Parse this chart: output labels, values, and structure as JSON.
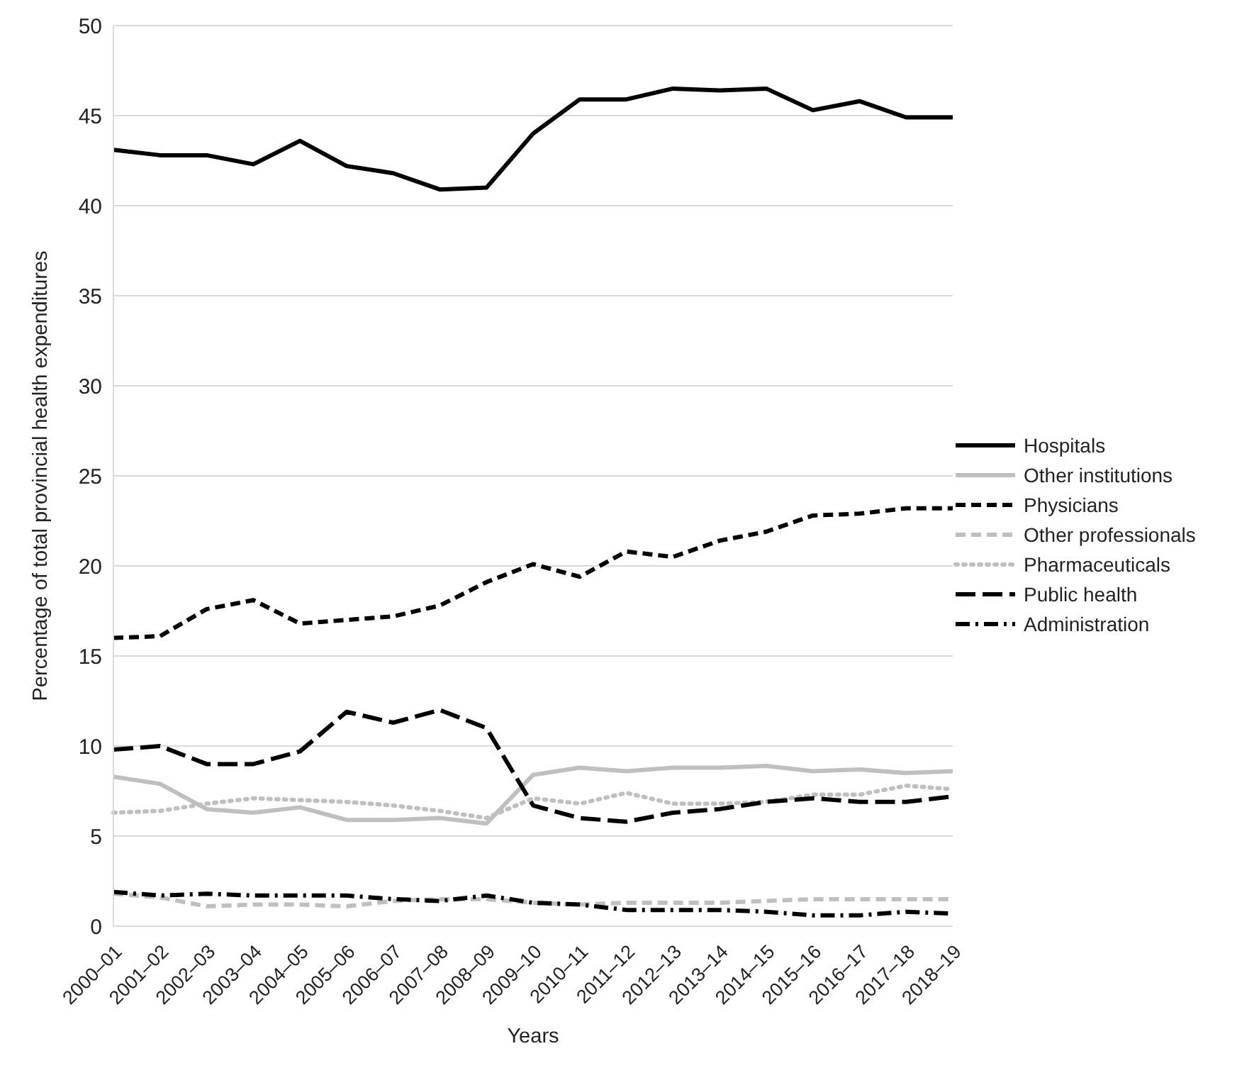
{
  "chart_data": {
    "type": "line",
    "xlabel": "Years",
    "ylabel": "Percentage of total provincial health expenditures",
    "categories": [
      "2000–01",
      "2001–02",
      "2002–03",
      "2003–04",
      "2004–05",
      "2005–06",
      "2006–07",
      "2007–08",
      "2008–09",
      "2009–10",
      "2010–11",
      "2011–12",
      "2012–13",
      "2013–14",
      "2014–15",
      "2015–16",
      "2016–17",
      "2017–18",
      "2018–19"
    ],
    "series": [
      {
        "name": "Hospitals",
        "color": "#000000",
        "line_style": "solid",
        "values": [
          43.1,
          42.8,
          42.8,
          42.3,
          43.6,
          42.2,
          41.8,
          40.9,
          41.0,
          44.0,
          45.9,
          45.9,
          46.5,
          46.4,
          46.5,
          45.3,
          45.8,
          44.9,
          44.9
        ]
      },
      {
        "name": "Other institutions",
        "color": "#bfbfbf",
        "line_style": "solid",
        "values": [
          8.3,
          7.9,
          6.5,
          6.3,
          6.6,
          5.9,
          5.9,
          6.0,
          5.7,
          8.4,
          8.8,
          8.6,
          8.8,
          8.8,
          8.9,
          8.6,
          8.7,
          8.5,
          8.6
        ]
      },
      {
        "name": "Physicians",
        "color": "#000000",
        "line_style": "dashed",
        "values": [
          16.0,
          16.1,
          17.6,
          18.1,
          16.8,
          17.0,
          17.2,
          17.8,
          19.1,
          20.1,
          19.4,
          20.8,
          20.5,
          21.4,
          21.9,
          22.8,
          22.9,
          23.2,
          23.2
        ]
      },
      {
        "name": "Other professionals",
        "color": "#bfbfbf",
        "line_style": "dashed",
        "values": [
          1.8,
          1.6,
          1.1,
          1.2,
          1.2,
          1.1,
          1.4,
          1.5,
          1.5,
          1.3,
          1.2,
          1.3,
          1.3,
          1.3,
          1.4,
          1.5,
          1.5,
          1.5,
          1.5
        ]
      },
      {
        "name": "Pharmaceuticals",
        "color": "#bfbfbf",
        "line_style": "dotted",
        "values": [
          6.3,
          6.4,
          6.8,
          7.1,
          7.0,
          6.9,
          6.7,
          6.4,
          6.0,
          7.1,
          6.8,
          7.4,
          6.8,
          6.8,
          6.9,
          7.3,
          7.3,
          7.8,
          7.6
        ]
      },
      {
        "name": "Public health",
        "color": "#000000",
        "line_style": "longdash",
        "values": [
          9.8,
          10.0,
          9.0,
          9.0,
          9.7,
          11.9,
          11.3,
          12.0,
          11.0,
          6.7,
          6.0,
          5.8,
          6.3,
          6.5,
          6.9,
          7.1,
          6.9,
          6.9,
          7.2
        ]
      },
      {
        "name": "Administration",
        "color": "#000000",
        "line_style": "dashdot",
        "values": [
          1.9,
          1.7,
          1.8,
          1.7,
          1.7,
          1.7,
          1.5,
          1.4,
          1.7,
          1.3,
          1.2,
          0.9,
          0.9,
          0.9,
          0.8,
          0.6,
          0.6,
          0.8,
          0.7
        ]
      }
    ],
    "ylim": [
      0,
      50
    ],
    "yticks": [
      0,
      5,
      10,
      15,
      20,
      25,
      30,
      35,
      40,
      45,
      50
    ],
    "grid": "y",
    "legend": "right",
    "marker": "none"
  }
}
